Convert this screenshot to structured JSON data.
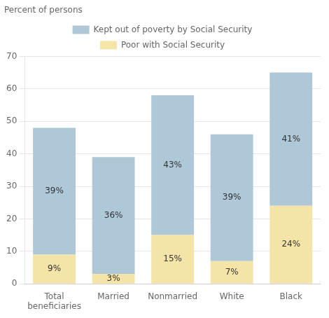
{
  "chart_data": {
    "type": "bar",
    "subtitle": "Percent of persons",
    "categories": [
      "Total\nbeneficiaries",
      "Married",
      "Nonmarried",
      "White",
      "Black"
    ],
    "series": [
      {
        "name": "Poor with Social Security",
        "color": "#f5e4a8",
        "values": [
          9,
          3,
          15,
          7,
          24
        ],
        "value_labels": [
          "9%",
          "3%",
          "15%",
          "7%",
          "24%"
        ]
      },
      {
        "name": "Kept out of poverty by Social Security",
        "color": "#aec8d8",
        "values": [
          39,
          36,
          43,
          39,
          41
        ],
        "value_labels": [
          "39%",
          "36%",
          "43%",
          "39%",
          "41%"
        ]
      }
    ],
    "stacked": true,
    "data_labels": true,
    "legend": "top",
    "grid": true,
    "ylim": [
      0,
      70
    ],
    "yticks": [
      0,
      10,
      20,
      30,
      40,
      50,
      60,
      70
    ]
  }
}
